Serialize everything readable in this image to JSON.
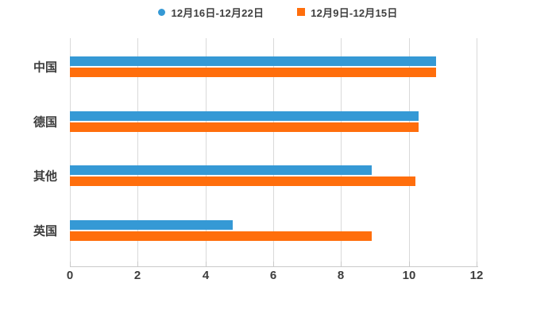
{
  "legend": {
    "items": [
      {
        "label": "12月16日-12月22日",
        "marker": "circle"
      },
      {
        "label": "12月9日-12月15日",
        "marker": "square"
      }
    ]
  },
  "chart_data": {
    "type": "bar",
    "orientation": "horizontal",
    "title": "",
    "xlabel": "",
    "ylabel": "",
    "categories": [
      "中国",
      "德国",
      "其他",
      "英国"
    ],
    "series": [
      {
        "name": "12月16日-12月22日",
        "color": "#3599d5",
        "marker": "circle",
        "values": [
          10.8,
          10.3,
          8.9,
          4.8
        ]
      },
      {
        "name": "12月9日-12月15日",
        "color": "#ff6e0c",
        "marker": "square",
        "values": [
          10.8,
          10.3,
          10.2,
          8.9
        ]
      }
    ],
    "xlim": [
      0,
      12
    ],
    "x_ticks": [
      0,
      2,
      4,
      6,
      8,
      10,
      12
    ],
    "grid": true,
    "legend_position": "top",
    "colors": {
      "grid": "#d9d9d9",
      "axis": "#c9c9c9",
      "text": "#3d3d3d",
      "background": "#ffffff"
    }
  }
}
